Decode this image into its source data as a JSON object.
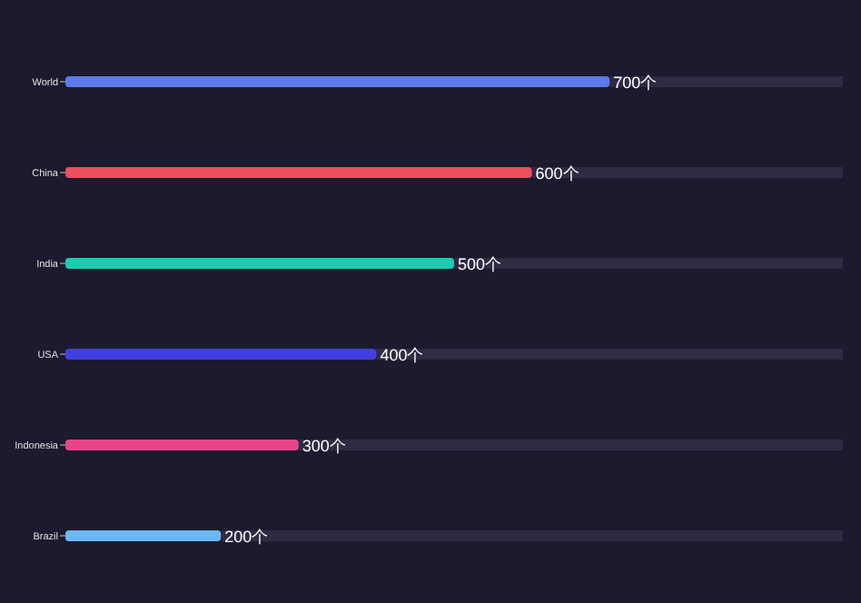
{
  "chart_data": {
    "type": "bar",
    "orientation": "horizontal",
    "categories": [
      "World",
      "China",
      "India",
      "USA",
      "Indonesia",
      "Brazil"
    ],
    "values": [
      700,
      600,
      500,
      400,
      300,
      200
    ],
    "colors": [
      "#5b7bea",
      "#ec4f5e",
      "#18cdb0",
      "#4040e0",
      "#e8458a",
      "#6cb8f5"
    ],
    "value_labels": [
      "700个",
      "600个",
      "500个",
      "400个",
      "300个",
      "200个"
    ],
    "xlim": [
      0,
      1000
    ],
    "tick_labels": "y"
  }
}
